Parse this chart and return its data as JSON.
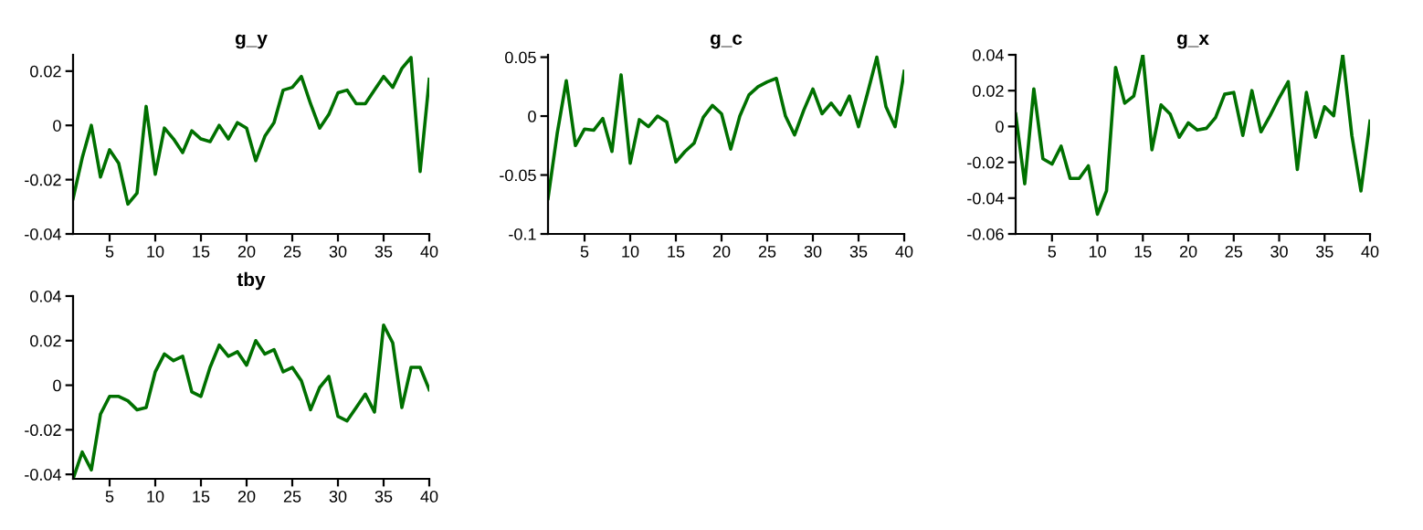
{
  "chart_data": [
    {
      "type": "line",
      "title": "g_y",
      "x": [
        1,
        2,
        3,
        4,
        5,
        6,
        7,
        8,
        9,
        10,
        11,
        12,
        13,
        14,
        15,
        16,
        17,
        18,
        19,
        20,
        21,
        22,
        23,
        24,
        25,
        26,
        27,
        28,
        29,
        30,
        31,
        32,
        33,
        34,
        35,
        36,
        37,
        38,
        39,
        40
      ],
      "xlim": [
        1,
        40
      ],
      "xticks": [
        5,
        10,
        15,
        20,
        25,
        30,
        35,
        40
      ],
      "ylim": [
        -0.04,
        0.026
      ],
      "yticks": [
        -0.04,
        -0.02,
        0,
        0.02
      ],
      "series": [
        {
          "color": "#007000",
          "values": [
            -0.027,
            -0.012,
            0.0,
            -0.019,
            -0.009,
            -0.014,
            -0.029,
            -0.025,
            0.007,
            -0.018,
            -0.001,
            -0.005,
            -0.01,
            -0.002,
            -0.005,
            -0.006,
            0.0,
            -0.005,
            0.001,
            -0.001,
            -0.013,
            -0.004,
            0.001,
            0.013,
            0.014,
            0.018,
            0.008,
            -0.001,
            0.004,
            0.012,
            0.013,
            0.008,
            0.008,
            0.013,
            0.018,
            0.014,
            0.021,
            0.025,
            -0.017,
            0.017
          ]
        }
      ]
    },
    {
      "type": "line",
      "title": "g_c",
      "x": [
        1,
        2,
        3,
        4,
        5,
        6,
        7,
        8,
        9,
        10,
        11,
        12,
        13,
        14,
        15,
        16,
        17,
        18,
        19,
        20,
        21,
        22,
        23,
        24,
        25,
        26,
        27,
        28,
        29,
        30,
        31,
        32,
        33,
        34,
        35,
        36,
        37,
        38,
        39,
        40
      ],
      "xlim": [
        1,
        40
      ],
      "xticks": [
        5,
        10,
        15,
        20,
        25,
        30,
        35,
        40
      ],
      "ylim": [
        -0.1,
        0.052
      ],
      "yticks": [
        -0.1,
        -0.05,
        0,
        0.05
      ],
      "series": [
        {
          "color": "#007000",
          "values": [
            -0.07,
            -0.015,
            0.03,
            -0.025,
            -0.011,
            -0.012,
            -0.002,
            -0.03,
            0.035,
            -0.04,
            -0.003,
            -0.009,
            0.0,
            -0.005,
            -0.039,
            -0.03,
            -0.023,
            -0.001,
            0.009,
            0.002,
            -0.028,
            0.0,
            0.018,
            0.025,
            0.029,
            0.032,
            0.0,
            -0.016,
            0.005,
            0.023,
            0.002,
            0.011,
            0.001,
            0.017,
            -0.009,
            0.02,
            0.05,
            0.008,
            -0.009,
            0.038
          ]
        }
      ]
    },
    {
      "type": "line",
      "title": "g_x",
      "x": [
        1,
        2,
        3,
        4,
        5,
        6,
        7,
        8,
        9,
        10,
        11,
        12,
        13,
        14,
        15,
        16,
        17,
        18,
        19,
        20,
        21,
        22,
        23,
        24,
        25,
        26,
        27,
        28,
        29,
        30,
        31,
        32,
        33,
        34,
        35,
        36,
        37,
        38,
        39,
        40
      ],
      "xlim": [
        1,
        40
      ],
      "xticks": [
        5,
        10,
        15,
        20,
        25,
        30,
        35,
        40
      ],
      "ylim": [
        -0.06,
        0.04
      ],
      "yticks": [
        -0.06,
        -0.04,
        -0.02,
        0,
        0.02,
        0.04
      ],
      "series": [
        {
          "color": "#007000",
          "values": [
            0.007,
            -0.032,
            0.021,
            -0.018,
            -0.021,
            -0.011,
            -0.029,
            -0.029,
            -0.022,
            -0.049,
            -0.036,
            0.033,
            0.013,
            0.017,
            0.04,
            -0.013,
            0.012,
            0.007,
            -0.006,
            0.002,
            -0.002,
            -0.001,
            0.005,
            0.018,
            0.019,
            -0.005,
            0.02,
            -0.003,
            0.006,
            0.016,
            0.025,
            -0.024,
            0.019,
            -0.006,
            0.011,
            0.006,
            0.04,
            -0.005,
            -0.036,
            0.003
          ]
        }
      ]
    },
    {
      "type": "line",
      "title": "tby",
      "x": [
        1,
        2,
        3,
        4,
        5,
        6,
        7,
        8,
        9,
        10,
        11,
        12,
        13,
        14,
        15,
        16,
        17,
        18,
        19,
        20,
        21,
        22,
        23,
        24,
        25,
        26,
        27,
        28,
        29,
        30,
        31,
        32,
        33,
        34,
        35,
        36,
        37,
        38,
        39,
        40
      ],
      "xlim": [
        1,
        40
      ],
      "xticks": [
        5,
        10,
        15,
        20,
        25,
        30,
        35,
        40
      ],
      "ylim": [
        -0.042,
        0.04
      ],
      "yticks": [
        -0.04,
        -0.02,
        0,
        0.02,
        0.04
      ],
      "series": [
        {
          "color": "#007000",
          "values": [
            -0.042,
            -0.03,
            -0.038,
            -0.013,
            -0.005,
            -0.005,
            -0.007,
            -0.011,
            -0.01,
            0.006,
            0.014,
            0.011,
            0.013,
            -0.003,
            -0.005,
            0.008,
            0.018,
            0.013,
            0.015,
            0.009,
            0.02,
            0.014,
            0.016,
            0.006,
            0.008,
            0.002,
            -0.011,
            -0.001,
            0.004,
            -0.014,
            -0.016,
            -0.01,
            -0.004,
            -0.012,
            0.027,
            0.019,
            -0.01,
            0.008,
            0.008,
            -0.002
          ]
        }
      ]
    }
  ]
}
